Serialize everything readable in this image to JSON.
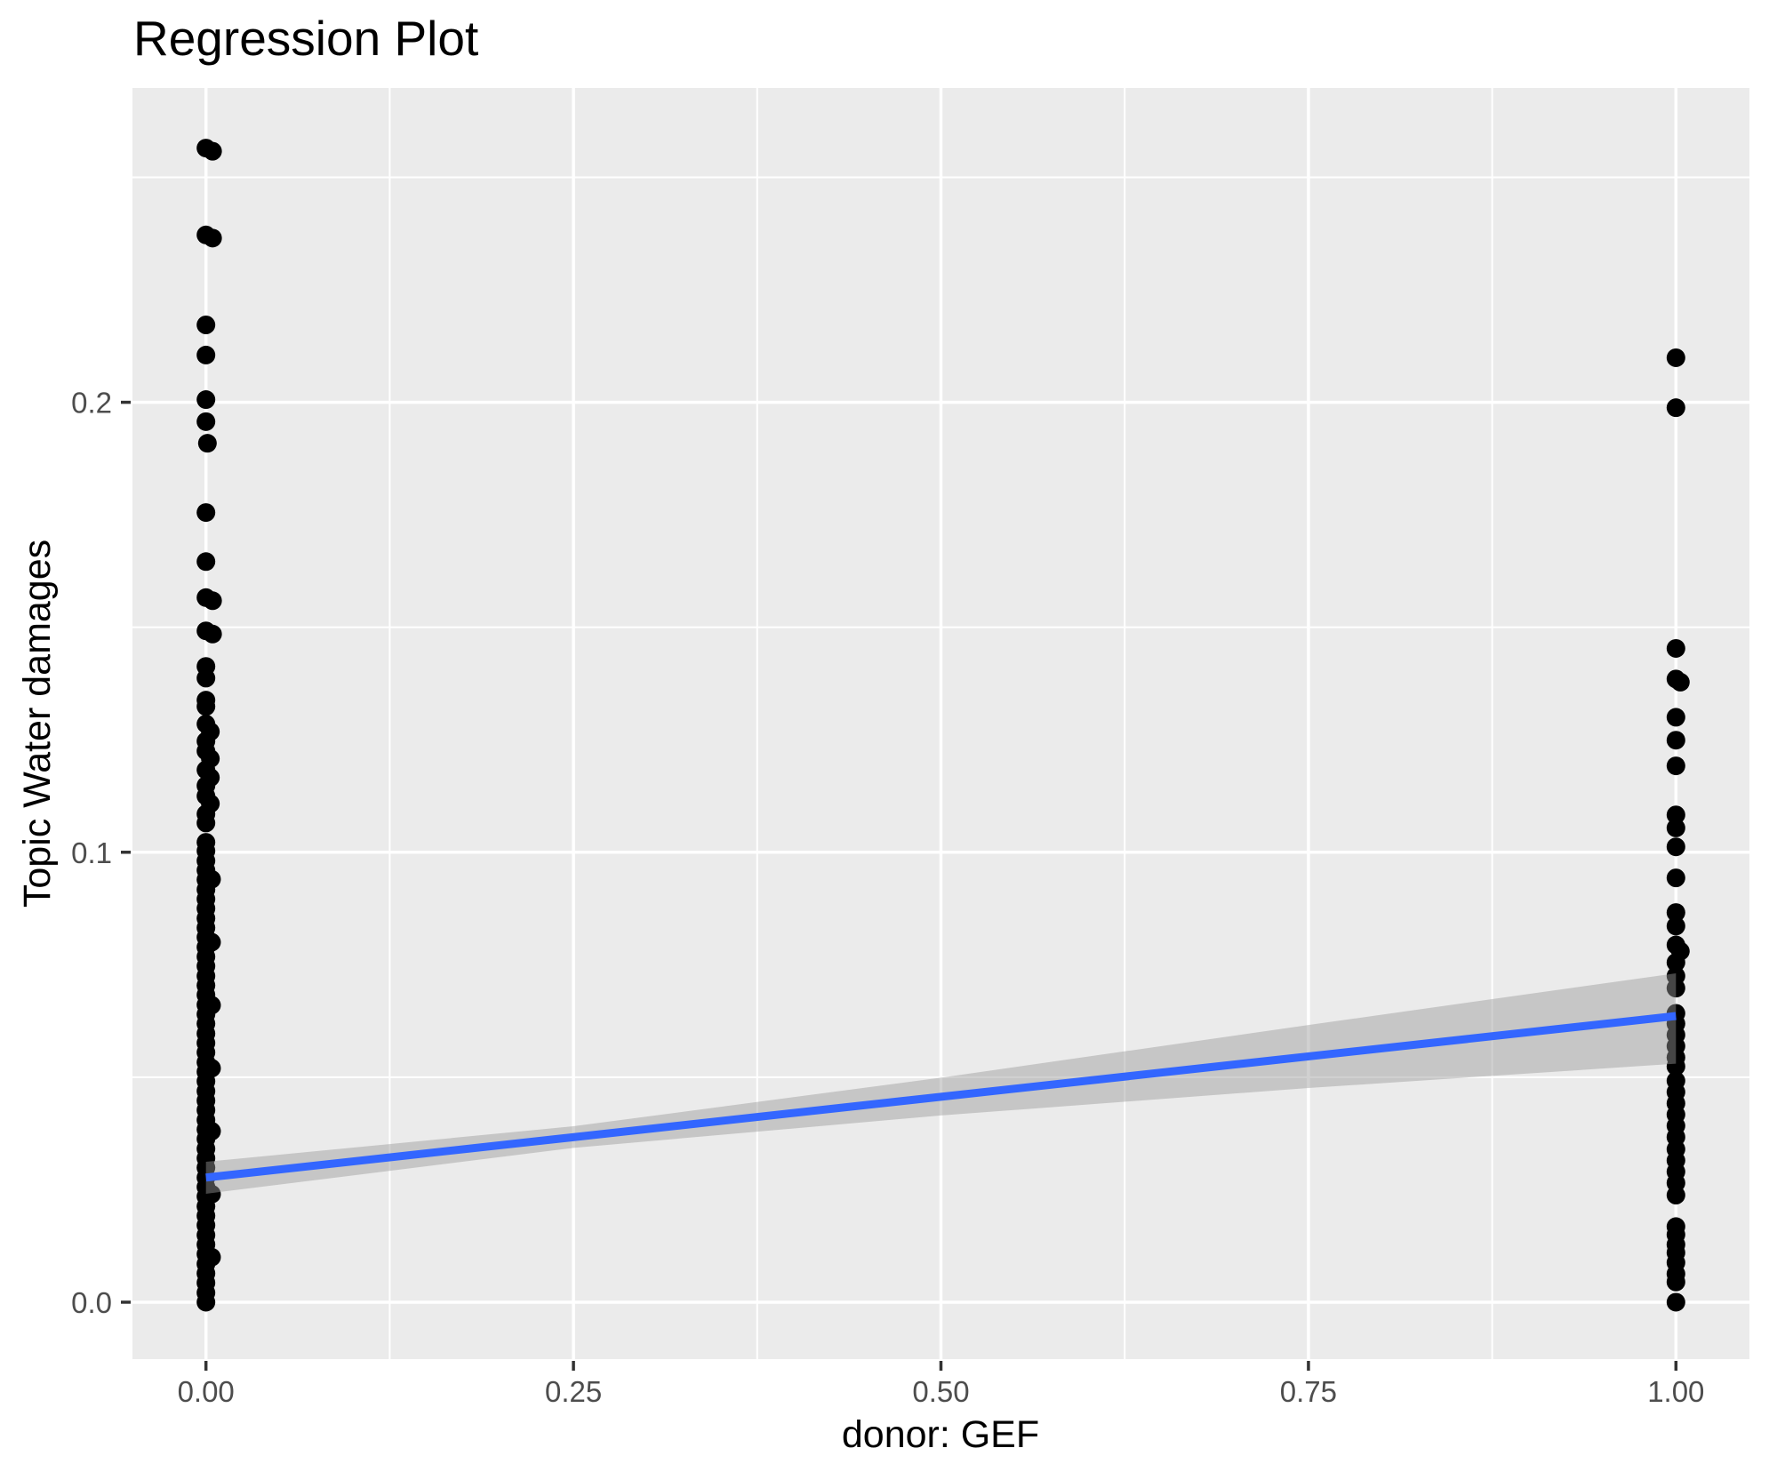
{
  "chart_data": {
    "type": "scatter",
    "title": "Regression Plot",
    "xlabel": "donor: GEF",
    "ylabel": "Topic Water damages",
    "xlim": [
      -0.05,
      1.05
    ],
    "ylim": [
      -0.01265,
      0.26985
    ],
    "grid": "on",
    "legend": "none",
    "x_ticks": [
      {
        "v": 0.0,
        "label": "0.00"
      },
      {
        "v": 0.25,
        "label": "0.25"
      },
      {
        "v": 0.5,
        "label": "0.50"
      },
      {
        "v": 0.75,
        "label": "0.75"
      },
      {
        "v": 1.0,
        "label": "1.00"
      }
    ],
    "y_ticks": [
      {
        "v": 0.0,
        "label": "0.0"
      },
      {
        "v": 0.1,
        "label": "0.1"
      },
      {
        "v": 0.2,
        "label": "0.2"
      }
    ],
    "x_minor": [
      0.125,
      0.375,
      0.625,
      0.875
    ],
    "y_minor": [
      0.05,
      0.15,
      0.25
    ],
    "points": [
      [
        0,
        0.2565
      ],
      [
        0.0045,
        0.2558
      ],
      [
        0,
        0.2372
      ],
      [
        0.0045,
        0.2365
      ],
      [
        0,
        0.2172
      ],
      [
        0,
        0.2105
      ],
      [
        0,
        0.2006
      ],
      [
        0,
        0.1957
      ],
      [
        0.001,
        0.1909
      ],
      [
        0,
        0.1755
      ],
      [
        0,
        0.1646
      ],
      [
        0,
        0.1566
      ],
      [
        0.0045,
        0.1559
      ],
      [
        0,
        0.1492
      ],
      [
        0.0045,
        0.1485
      ],
      [
        0,
        0.1413
      ],
      [
        0,
        0.1387
      ],
      [
        0,
        0.1338
      ],
      [
        0,
        0.1324
      ],
      [
        0,
        0.1285
      ],
      [
        0.003,
        0.1268
      ],
      [
        0,
        0.1247
      ],
      [
        0,
        0.1225
      ],
      [
        0.003,
        0.1208
      ],
      [
        0,
        0.1183
      ],
      [
        0.003,
        0.1166
      ],
      [
        0,
        0.1148
      ],
      [
        0,
        0.1125
      ],
      [
        0.003,
        0.1108
      ],
      [
        0,
        0.1085
      ],
      [
        0,
        0.1065
      ],
      [
        0,
        0.1022
      ],
      [
        0,
        0.1003
      ],
      [
        0,
        0.0981
      ],
      [
        0,
        0.096
      ],
      [
        0.0038,
        0.094
      ],
      [
        0,
        0.0939
      ],
      [
        0,
        0.0917
      ],
      [
        0,
        0.0896
      ],
      [
        0,
        0.0875
      ],
      [
        0,
        0.0853
      ],
      [
        0,
        0.0832
      ],
      [
        0,
        0.0811
      ],
      [
        0.0038,
        0.08
      ],
      [
        0,
        0.0789
      ],
      [
        0,
        0.0768
      ],
      [
        0,
        0.0747
      ],
      [
        0,
        0.0725
      ],
      [
        0,
        0.0704
      ],
      [
        0,
        0.0683
      ],
      [
        0.0038,
        0.066
      ],
      [
        0,
        0.0661
      ],
      [
        0,
        0.064
      ],
      [
        0,
        0.0619
      ],
      [
        0,
        0.0597
      ],
      [
        0,
        0.0576
      ],
      [
        0,
        0.0555
      ],
      [
        0,
        0.0533
      ],
      [
        0.0038,
        0.052
      ],
      [
        0,
        0.0512
      ],
      [
        0,
        0.0491
      ],
      [
        0,
        0.0469
      ],
      [
        0,
        0.0448
      ],
      [
        0,
        0.0427
      ],
      [
        0,
        0.0405
      ],
      [
        0.0038,
        0.038
      ],
      [
        0,
        0.0384
      ],
      [
        0,
        0.0363
      ],
      [
        0,
        0.0341
      ],
      [
        0,
        0.032
      ],
      [
        0,
        0.0299
      ],
      [
        0,
        0.0277
      ],
      [
        0,
        0.0256
      ],
      [
        0.0038,
        0.024
      ],
      [
        0,
        0.0235
      ],
      [
        0,
        0.0213
      ],
      [
        0,
        0.0192
      ],
      [
        0,
        0.0171
      ],
      [
        0,
        0.0149
      ],
      [
        0,
        0.0128
      ],
      [
        0.0038,
        0.01
      ],
      [
        0,
        0.0107
      ],
      [
        0,
        0.0085
      ],
      [
        0,
        0.0064
      ],
      [
        0,
        0.0043
      ],
      [
        0,
        0.0021
      ],
      [
        0,
        0.0
      ],
      [
        1,
        0.2099
      ],
      [
        1,
        0.1988
      ],
      [
        1,
        0.1453
      ],
      [
        1,
        0.1385
      ],
      [
        1.003,
        0.1378
      ],
      [
        1,
        0.13
      ],
      [
        1,
        0.1249
      ],
      [
        1,
        0.1192
      ],
      [
        1,
        0.1083
      ],
      [
        1,
        0.1054
      ],
      [
        1,
        0.1012
      ],
      [
        1,
        0.0943
      ],
      [
        1,
        0.0866
      ],
      [
        1,
        0.0836
      ],
      [
        1,
        0.0794
      ],
      [
        1.003,
        0.078
      ],
      [
        1,
        0.0755
      ],
      [
        1,
        0.0725
      ],
      [
        1,
        0.0698
      ],
      [
        1,
        0.0642
      ],
      [
        1,
        0.0619
      ],
      [
        1,
        0.0594
      ],
      [
        1,
        0.0569
      ],
      [
        1,
        0.0544
      ],
      [
        1,
        0.0524
      ],
      [
        1,
        0.0492
      ],
      [
        1,
        0.0467
      ],
      [
        1,
        0.0442
      ],
      [
        1,
        0.0417
      ],
      [
        1,
        0.0392
      ],
      [
        1,
        0.0367
      ],
      [
        1,
        0.034
      ],
      [
        1,
        0.0315
      ],
      [
        1,
        0.029
      ],
      [
        1,
        0.0265
      ],
      [
        1,
        0.0238
      ],
      [
        1,
        0.0168
      ],
      [
        1,
        0.015
      ],
      [
        1,
        0.0128
      ],
      [
        1,
        0.011
      ],
      [
        1,
        0.0088
      ],
      [
        1,
        0.0063
      ],
      [
        1,
        0.0045
      ],
      [
        1,
        0.0
      ]
    ],
    "regression_line": {
      "x": [
        0,
        1
      ],
      "y": [
        0.0277,
        0.0636
      ],
      "color": "#3366FF"
    },
    "ci_band": {
      "x": [
        0,
        0.25,
        0.5,
        0.75,
        1
      ],
      "upper": [
        0.0312,
        0.0391,
        0.0499,
        0.0616,
        0.0731
      ],
      "lower": [
        0.0241,
        0.0343,
        0.0415,
        0.0476,
        0.053
      ],
      "color": "#999999",
      "opacity": 0.45
    },
    "colors": {
      "panel": "#EBEBEB",
      "grid": "#FFFFFF",
      "point": "#000000",
      "tick_text": "#4D4D4D",
      "tick_mark": "#333333",
      "title_text": "#000000"
    }
  }
}
